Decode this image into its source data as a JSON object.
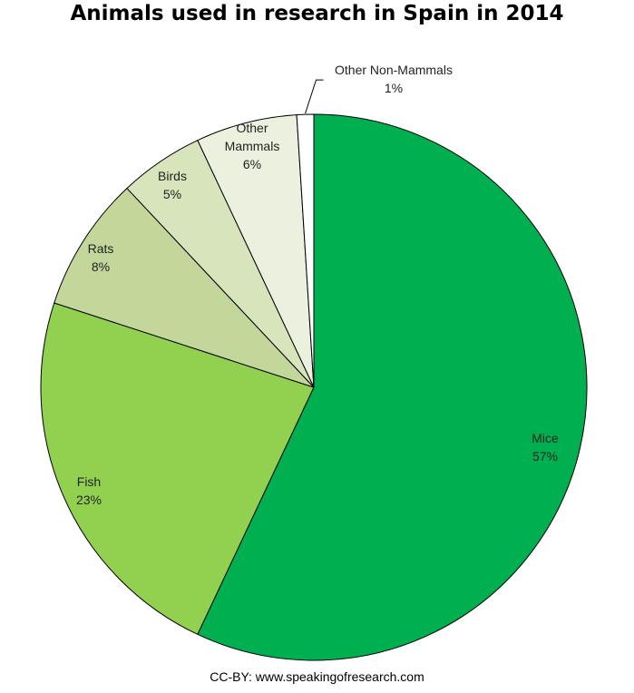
{
  "chart_data": {
    "type": "pie",
    "title": "Animals used in research in Spain in 2014",
    "slices": [
      {
        "name": "Mice",
        "value": 57,
        "label": "57%",
        "color": "#00b050"
      },
      {
        "name": "Fish",
        "value": 23,
        "label": "23%",
        "color": "#92d050"
      },
      {
        "name": "Rats",
        "value": 8,
        "label": "8%",
        "color": "#c4d79b"
      },
      {
        "name": "Birds",
        "value": 5,
        "label": "5%",
        "color": "#d8e4bc"
      },
      {
        "name": "Other Mammals",
        "value": 6,
        "label": "6%",
        "color": "#ebf1de"
      },
      {
        "name": "Other Non-Mammals",
        "value": 1,
        "label": "1%",
        "color": "#ffffff"
      }
    ],
    "start_direction": "top",
    "direction": "clockwise",
    "legend": "none",
    "credit": "CC-BY: www.speakingofresearch.com"
  }
}
